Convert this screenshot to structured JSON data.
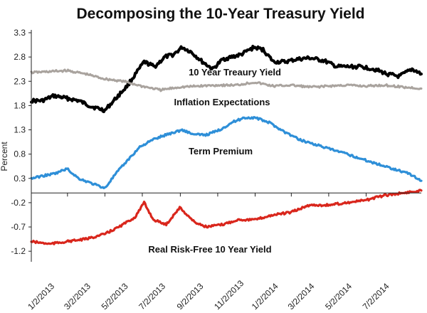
{
  "chart_data": {
    "type": "line",
    "title": "Decomposing the 10-Year Treasury Yield",
    "xlabel": "",
    "ylabel": "Percent",
    "ylim": [
      -1.3,
      3.3
    ],
    "yticks": [
      "3.3",
      "2.8",
      "2.3",
      "1.8",
      "1.3",
      "0.8",
      "0.3",
      "-0.2",
      "-0.7",
      "-1.2"
    ],
    "xticks": [
      "1/2/2013",
      "3/2/2013",
      "5/2/2013",
      "7/2/2013",
      "9/2/2013",
      "11/2/2013",
      "1/2/2014",
      "3/2/2014",
      "5/2/2014",
      "7/2/2014"
    ],
    "grid": false,
    "x_range": [
      "2013-01-02",
      "2014-09-30"
    ],
    "annotations": [
      "10 Year Treaury Yield",
      "Inflation Expectations",
      "Term Premium",
      "Real Risk-Free 10 Year Yield"
    ],
    "series": [
      {
        "name": "10 Year Treaury Yield",
        "color": "#000000",
        "x": [
          "2013-01-02",
          "2013-01-20",
          "2013-02-08",
          "2013-03-01",
          "2013-03-20",
          "2013-04-10",
          "2013-05-02",
          "2013-05-20",
          "2013-06-07",
          "2013-06-24",
          "2013-07-05",
          "2013-07-22",
          "2013-08-08",
          "2013-08-22",
          "2013-09-05",
          "2013-09-20",
          "2013-10-08",
          "2013-10-25",
          "2013-11-10",
          "2013-11-25",
          "2013-12-10",
          "2013-12-31",
          "2014-01-15",
          "2014-02-01",
          "2014-02-20",
          "2014-03-10",
          "2014-04-01",
          "2014-04-25",
          "2014-05-15",
          "2014-06-05",
          "2014-06-25",
          "2014-07-15",
          "2014-08-05",
          "2014-08-25",
          "2014-09-15",
          "2014-09-30"
        ],
        "y": [
          1.9,
          1.9,
          2.0,
          1.95,
          1.9,
          1.78,
          1.7,
          1.95,
          2.2,
          2.5,
          2.7,
          2.6,
          2.8,
          2.85,
          3.0,
          2.9,
          2.7,
          2.55,
          2.75,
          2.8,
          2.85,
          3.0,
          2.95,
          2.7,
          2.7,
          2.75,
          2.78,
          2.72,
          2.6,
          2.6,
          2.6,
          2.55,
          2.45,
          2.4,
          2.55,
          2.45
        ]
      },
      {
        "name": "Inflation Expectations",
        "color": "#a9a39e",
        "x": [
          "2013-01-02",
          "2013-02-01",
          "2013-03-01",
          "2013-04-01",
          "2013-05-01",
          "2013-06-01",
          "2013-07-01",
          "2013-08-01",
          "2013-09-01",
          "2013-10-01",
          "2013-11-01",
          "2013-12-01",
          "2014-01-01",
          "2014-02-01",
          "2014-03-01",
          "2014-04-01",
          "2014-05-01",
          "2014-06-01",
          "2014-07-01",
          "2014-08-01",
          "2014-09-01",
          "2014-09-30"
        ],
        "y": [
          2.48,
          2.5,
          2.52,
          2.45,
          2.35,
          2.3,
          2.2,
          2.12,
          2.18,
          2.2,
          2.22,
          2.22,
          2.28,
          2.2,
          2.22,
          2.18,
          2.2,
          2.22,
          2.2,
          2.22,
          2.18,
          2.15
        ]
      },
      {
        "name": "Term Premium",
        "color": "#2e8fd8",
        "x": [
          "2013-01-02",
          "2013-01-20",
          "2013-02-10",
          "2013-03-01",
          "2013-03-20",
          "2013-04-10",
          "2013-05-02",
          "2013-05-20",
          "2013-06-10",
          "2013-06-28",
          "2013-07-20",
          "2013-08-10",
          "2013-09-05",
          "2013-09-25",
          "2013-10-15",
          "2013-11-05",
          "2013-11-25",
          "2013-12-15",
          "2014-01-02",
          "2014-01-25",
          "2014-02-20",
          "2014-03-15",
          "2014-04-10",
          "2014-05-05",
          "2014-06-01",
          "2014-06-25",
          "2014-07-20",
          "2014-08-15",
          "2014-09-10",
          "2014-09-30"
        ],
        "y": [
          0.3,
          0.35,
          0.4,
          0.5,
          0.3,
          0.2,
          0.1,
          0.4,
          0.7,
          0.95,
          1.1,
          1.2,
          1.3,
          1.2,
          1.2,
          1.3,
          1.45,
          1.55,
          1.55,
          1.45,
          1.25,
          1.1,
          1.0,
          0.9,
          0.8,
          0.7,
          0.6,
          0.5,
          0.4,
          0.25
        ]
      },
      {
        "name": "Real Risk-Free 10 Year Yield",
        "color": "#d9261c",
        "x": [
          "2013-01-02",
          "2013-02-01",
          "2013-03-01",
          "2013-04-01",
          "2013-05-01",
          "2013-05-25",
          "2013-06-20",
          "2013-07-05",
          "2013-07-20",
          "2013-08-10",
          "2013-09-01",
          "2013-09-25",
          "2013-10-15",
          "2013-11-10",
          "2013-12-05",
          "2014-01-02",
          "2014-02-01",
          "2014-03-01",
          "2014-04-01",
          "2014-05-01",
          "2014-06-01",
          "2014-07-01",
          "2014-08-01",
          "2014-09-01",
          "2014-09-30"
        ],
        "y": [
          -1.0,
          -1.05,
          -1.0,
          -0.95,
          -0.85,
          -0.7,
          -0.5,
          -0.2,
          -0.55,
          -0.65,
          -0.3,
          -0.6,
          -0.7,
          -0.65,
          -0.55,
          -0.55,
          -0.45,
          -0.4,
          -0.25,
          -0.25,
          -0.2,
          -0.15,
          -0.05,
          0.0,
          0.05
        ]
      }
    ]
  }
}
